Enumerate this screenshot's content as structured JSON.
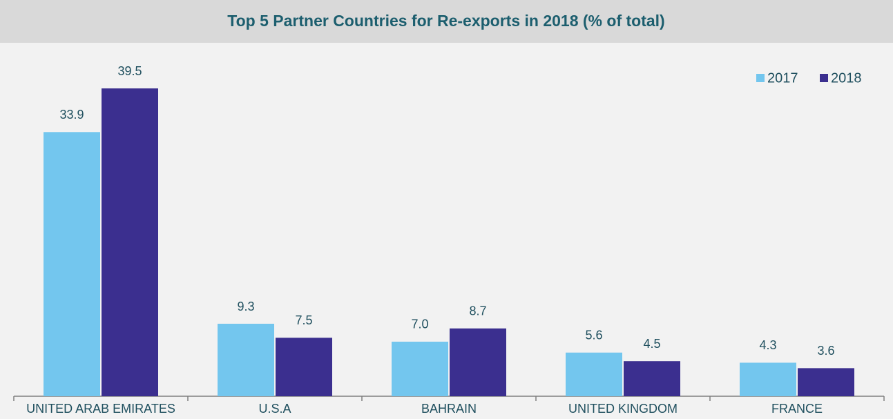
{
  "chart_data": {
    "type": "bar",
    "title": "Top 5 Partner Countries for Re-exports in 2018 (% of total)",
    "categories": [
      "UNITED ARAB EMIRATES",
      "U.S.A",
      "BAHRAIN",
      "UNITED KINGDOM",
      "FRANCE"
    ],
    "series": [
      {
        "name": "2017",
        "color": "#73c6ee",
        "values": [
          33.9,
          9.3,
          7,
          5.6,
          4.3
        ],
        "value_labels": [
          "33.9",
          "9.3",
          "7.0",
          "5.6",
          "4.3"
        ]
      },
      {
        "name": "2018",
        "color": "#3b2f8f",
        "values": [
          39.5,
          7.5,
          8.7,
          4.5,
          3.6
        ],
        "value_labels": [
          "39.5",
          "7.5",
          "8.7",
          "4.5",
          "3.6"
        ]
      }
    ],
    "ylim": [
      0,
      45
    ],
    "legend": "top-right",
    "grid": false
  }
}
